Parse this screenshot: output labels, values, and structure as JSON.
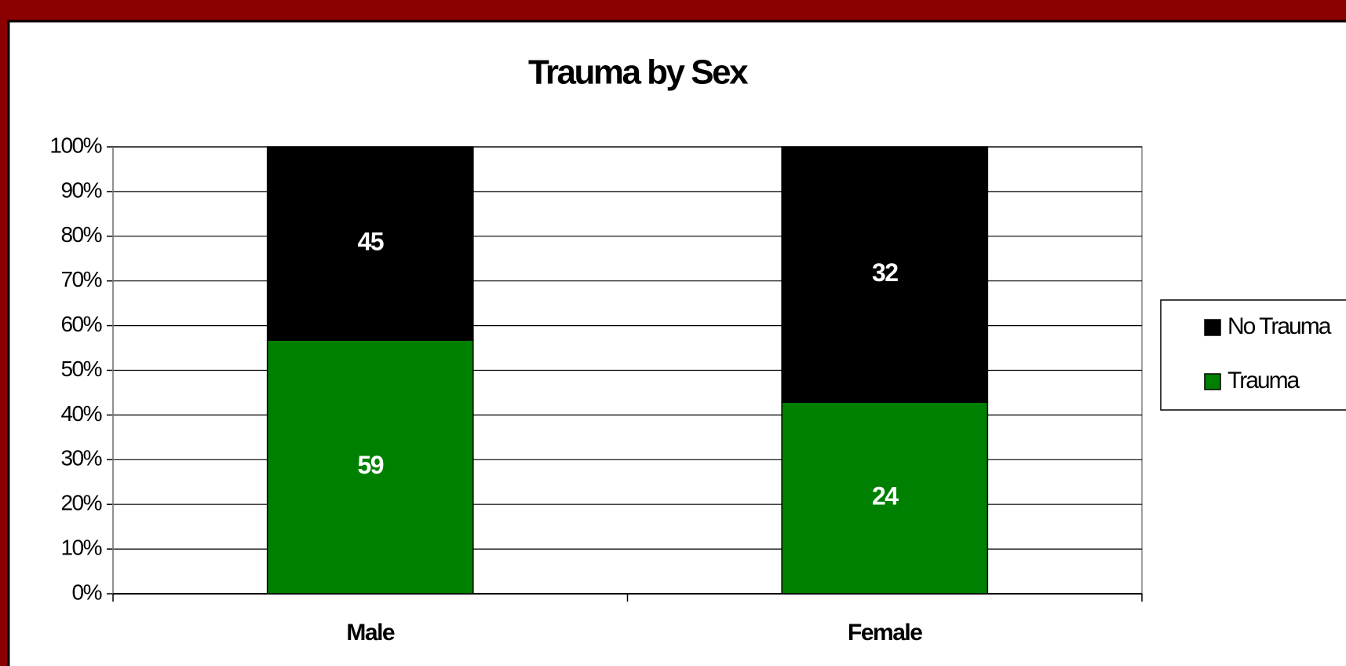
{
  "chart_data": {
    "type": "bar",
    "stacking": "percent",
    "title": "Trauma by Sex",
    "categories": [
      "Male",
      "Female"
    ],
    "series": [
      {
        "name": "Trauma",
        "color": "#008000",
        "values": [
          59,
          24
        ]
      },
      {
        "name": "No Trauma",
        "color": "#000000",
        "values": [
          45,
          32
        ]
      }
    ],
    "ylim": [
      0,
      100
    ],
    "yticks": [
      {
        "value": 0,
        "label": "0%"
      },
      {
        "value": 10,
        "label": "10%"
      },
      {
        "value": 20,
        "label": "20%"
      },
      {
        "value": 30,
        "label": "30%"
      },
      {
        "value": 40,
        "label": "40%"
      },
      {
        "value": 50,
        "label": "50%"
      },
      {
        "value": 60,
        "label": "60%"
      },
      {
        "value": 70,
        "label": "70%"
      },
      {
        "value": 80,
        "label": "80%"
      },
      {
        "value": 90,
        "label": "90%"
      },
      {
        "value": 100,
        "label": "100%"
      }
    ],
    "grid": true
  }
}
